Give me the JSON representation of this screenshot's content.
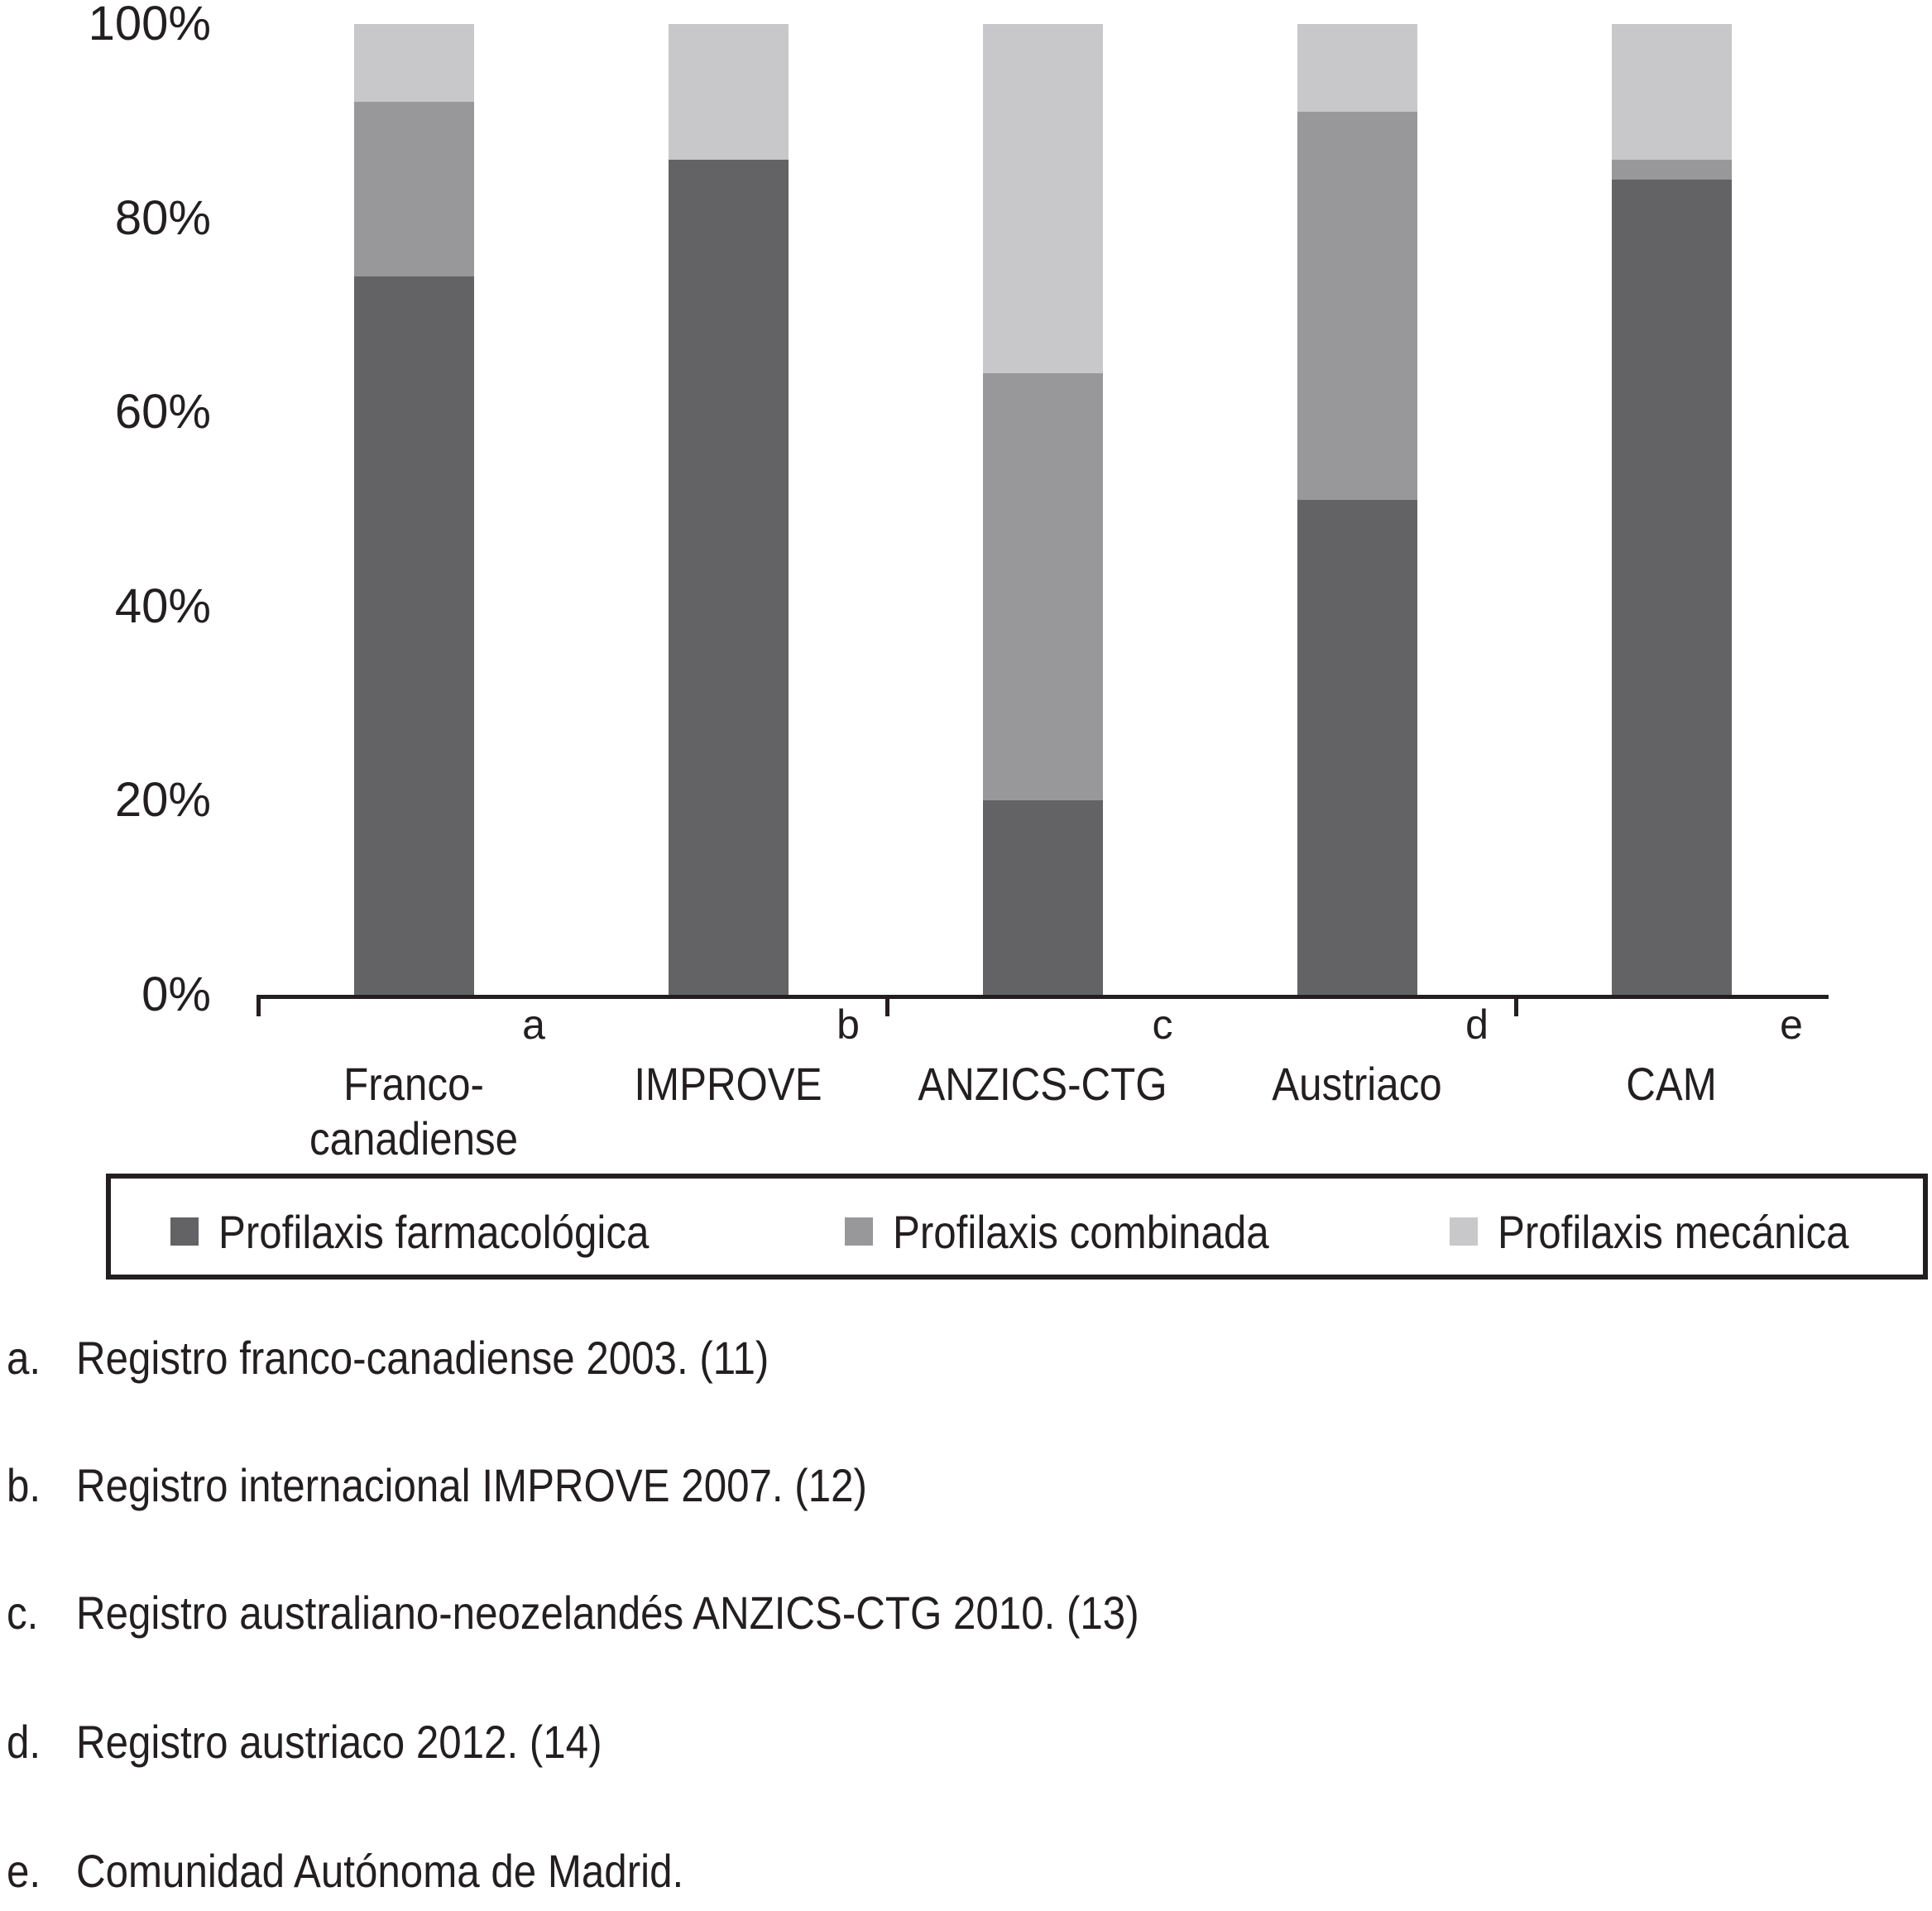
{
  "figure": {
    "background_color": "#FFFFFF",
    "text_color": "#231F20"
  },
  "chart_data": {
    "type": "bar",
    "stacked": true,
    "percent_stacked": true,
    "grid": false,
    "legend_position": "bottom",
    "ylim": [
      0,
      100
    ],
    "y_ticks": [
      {
        "label": "100%",
        "value": 100
      },
      {
        "label": "80%",
        "value": 80
      },
      {
        "label": "60%",
        "value": 60
      },
      {
        "label": "40%",
        "value": 40
      },
      {
        "label": "20%",
        "value": 20
      },
      {
        "label": "0%",
        "value": 0
      }
    ],
    "x_tick_slots": [
      0,
      2,
      4
    ],
    "categories": [
      {
        "footnote_letter": "a",
        "label_lines": [
          "Franco-",
          "canadiense"
        ]
      },
      {
        "footnote_letter": "b",
        "label_lines": [
          "IMPROVE"
        ]
      },
      {
        "footnote_letter": "c",
        "label_lines": [
          "ANZICS-CTG"
        ]
      },
      {
        "footnote_letter": "d",
        "label_lines": [
          "Austriaco"
        ]
      },
      {
        "footnote_letter": "e",
        "label_lines": [
          "CAM"
        ]
      }
    ],
    "series": [
      {
        "name": "Profilaxis farmacológica",
        "color": "#636366",
        "values": [
          74,
          86,
          20,
          51,
          84
        ]
      },
      {
        "name": "Profilaxis combinada",
        "color": "#98989B",
        "values": [
          18,
          0,
          44,
          40,
          2
        ]
      },
      {
        "name": "Profilaxis mecánica",
        "color": "#C8C8CB",
        "values": [
          8,
          14,
          36,
          9,
          14
        ]
      }
    ]
  },
  "footnotes": [
    {
      "letter": "a.",
      "text": "Registro franco-canadiense 2003. (11)"
    },
    {
      "letter": "b.",
      "text": "Registro internacional IMPROVE 2007. (12)"
    },
    {
      "letter": "c.",
      "text": "Registro australiano-neozelandés ANZICS-CTG 2010. (13)"
    },
    {
      "letter": "d.",
      "text": "Registro austriaco 2012. (14)"
    },
    {
      "letter": "e.",
      "text": "Comunidad Autónoma de Madrid."
    }
  ]
}
